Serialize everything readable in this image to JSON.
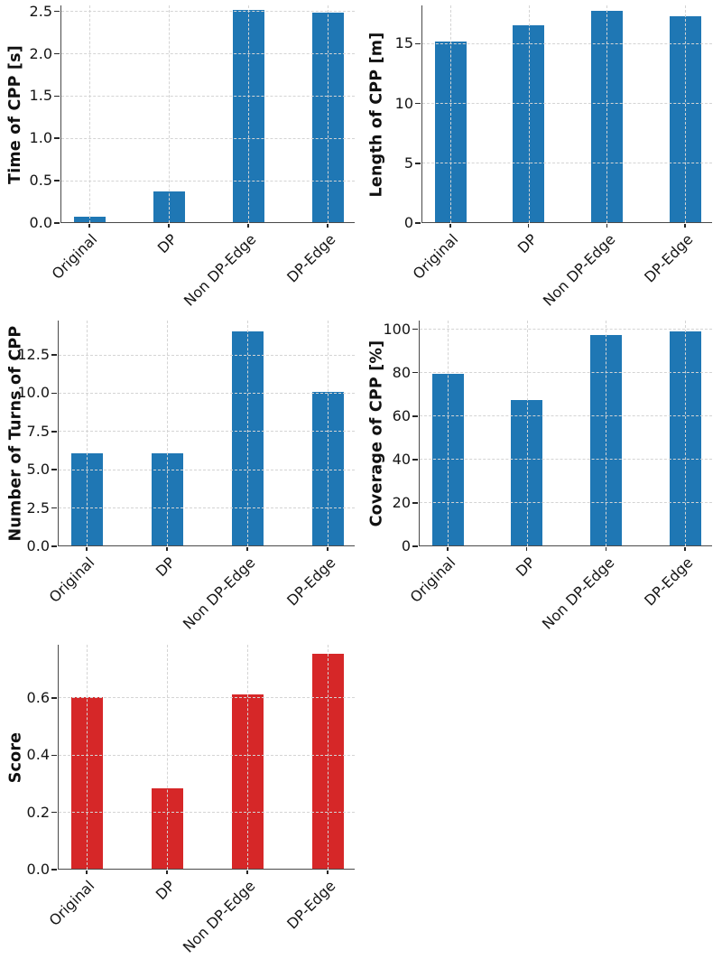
{
  "figure": {
    "background": "#ffffff",
    "accent_blue": "#1f77b4",
    "accent_red": "#d62728",
    "grid_color": "#d4d4d4",
    "spine_color": "#4a4a4a"
  },
  "chart_data": [
    {
      "type": "bar",
      "ylabel": "Time of CPP [s]",
      "categories": [
        "Original",
        "DP",
        "Non DP-Edge",
        "DP-Edge"
      ],
      "values": [
        0.06,
        0.36,
        2.51,
        2.47
      ],
      "yticks": [
        0,
        0.5,
        1,
        1.5,
        2,
        2.5
      ],
      "ytick_labels": [
        "0.0",
        "0.5",
        "1.0",
        "1.5",
        "2.0",
        "2.5"
      ],
      "ylim": [
        0,
        2.57
      ],
      "bar_color": "#1f77b4",
      "grid": "dashed-both-axes",
      "legend": "none",
      "xtick_rotation": 45
    },
    {
      "type": "bar",
      "ylabel": "Length of CPP [m]",
      "categories": [
        "Original",
        "DP",
        "Non DP-Edge",
        "DP-Edge"
      ],
      "values": [
        15.1,
        16.5,
        17.7,
        17.2
      ],
      "yticks": [
        0,
        5,
        10,
        15
      ],
      "ytick_labels": [
        "0",
        "5",
        "10",
        "15"
      ],
      "ylim": [
        0,
        18.2
      ],
      "bar_color": "#1f77b4",
      "grid": "dashed-both-axes",
      "legend": "none",
      "xtick_rotation": 45
    },
    {
      "type": "bar",
      "ylabel": "Number of Turns of CPP",
      "categories": [
        "Original",
        "DP",
        "Non DP-Edge",
        "DP-Edge"
      ],
      "values": [
        6,
        6,
        14,
        10
      ],
      "yticks": [
        0,
        2.5,
        5,
        7.5,
        10,
        12.5
      ],
      "ytick_labels": [
        "0.0",
        "2.5",
        "5.0",
        "7.5",
        "10.0",
        "12.5"
      ],
      "ylim": [
        0,
        14.74
      ],
      "bar_color": "#1f77b4",
      "grid": "dashed-both-axes",
      "legend": "none",
      "xtick_rotation": 45
    },
    {
      "type": "bar",
      "ylabel": "Coverage of CPP [%]",
      "categories": [
        "Original",
        "DP",
        "Non DP-Edge",
        "DP-Edge"
      ],
      "values": [
        79,
        67,
        97,
        98.5
      ],
      "yticks": [
        0,
        20,
        40,
        60,
        80,
        100
      ],
      "ytick_labels": [
        "0",
        "20",
        "40",
        "60",
        "80",
        "100"
      ],
      "ylim": [
        0,
        104
      ],
      "bar_color": "#1f77b4",
      "grid": "dashed-both-axes",
      "legend": "none",
      "xtick_rotation": 45
    },
    {
      "type": "bar",
      "ylabel": "Score",
      "categories": [
        "Original",
        "DP",
        "Non DP-Edge",
        "DP-Edge"
      ],
      "values": [
        0.6,
        0.28,
        0.61,
        0.75
      ],
      "yticks": [
        0,
        0.2,
        0.4,
        0.6
      ],
      "ytick_labels": [
        "0.0",
        "0.2",
        "0.4",
        "0.6"
      ],
      "ylim": [
        0,
        0.786
      ],
      "bar_color": "#d62728",
      "grid": "dashed-both-axes",
      "legend": "none",
      "xtick_rotation": 45
    }
  ]
}
